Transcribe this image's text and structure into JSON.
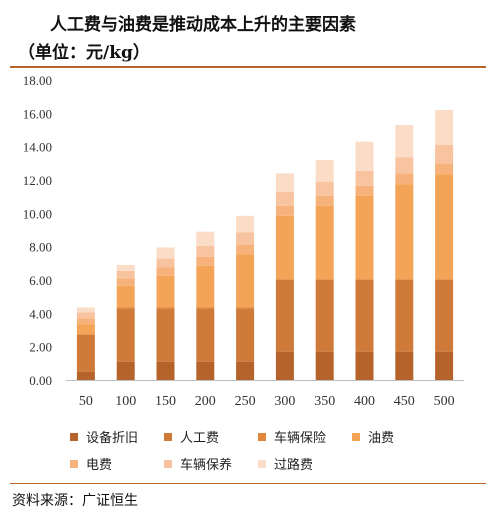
{
  "title_line1": "人工费与油费是推动成本上升的主要因素",
  "title_line2": "（单位：元/kg）",
  "source": "资料来源：广证恒生",
  "chart_data": {
    "type": "bar",
    "stacked": true,
    "categories": [
      "50",
      "100",
      "150",
      "200",
      "250",
      "300",
      "350",
      "400",
      "450",
      "500"
    ],
    "ylim": [
      0,
      18
    ],
    "yticks": [
      "0.00",
      "2.00",
      "4.00",
      "6.00",
      "8.00",
      "10.00",
      "12.00",
      "14.00",
      "16.00",
      "18.00"
    ],
    "grid": false,
    "legend_position": "bottom",
    "series": [
      {
        "name": "设备折旧",
        "color": "#b5622b",
        "values": [
          0.5,
          1.1,
          1.1,
          1.1,
          1.1,
          1.7,
          1.7,
          1.7,
          1.7,
          1.7
        ]
      },
      {
        "name": "人工费",
        "color": "#d07a3a",
        "values": [
          2.2,
          3.2,
          3.2,
          3.2,
          3.2,
          4.3,
          4.3,
          4.3,
          4.3,
          4.3
        ]
      },
      {
        "name": "车辆保险",
        "color": "#e2873e",
        "values": [
          0.05,
          0.05,
          0.05,
          0.05,
          0.05,
          0.05,
          0.05,
          0.05,
          0.05,
          0.05
        ]
      },
      {
        "name": "油费",
        "color": "#f4a457",
        "values": [
          0.6,
          1.3,
          1.9,
          2.5,
          3.2,
          3.8,
          4.4,
          5.0,
          5.7,
          6.3
        ]
      },
      {
        "name": "电费",
        "color": "#f6b27a",
        "values": [
          0.35,
          0.45,
          0.5,
          0.55,
          0.55,
          0.6,
          0.6,
          0.6,
          0.65,
          0.65
        ]
      },
      {
        "name": "车辆保养",
        "color": "#f8c4a0",
        "values": [
          0.35,
          0.45,
          0.55,
          0.65,
          0.75,
          0.85,
          0.85,
          0.9,
          0.95,
          1.1
        ]
      },
      {
        "name": "过路费",
        "color": "#fbdcc6",
        "values": [
          0.3,
          0.35,
          0.65,
          0.85,
          1.0,
          1.1,
          1.3,
          1.75,
          1.95,
          2.1
        ]
      }
    ]
  }
}
